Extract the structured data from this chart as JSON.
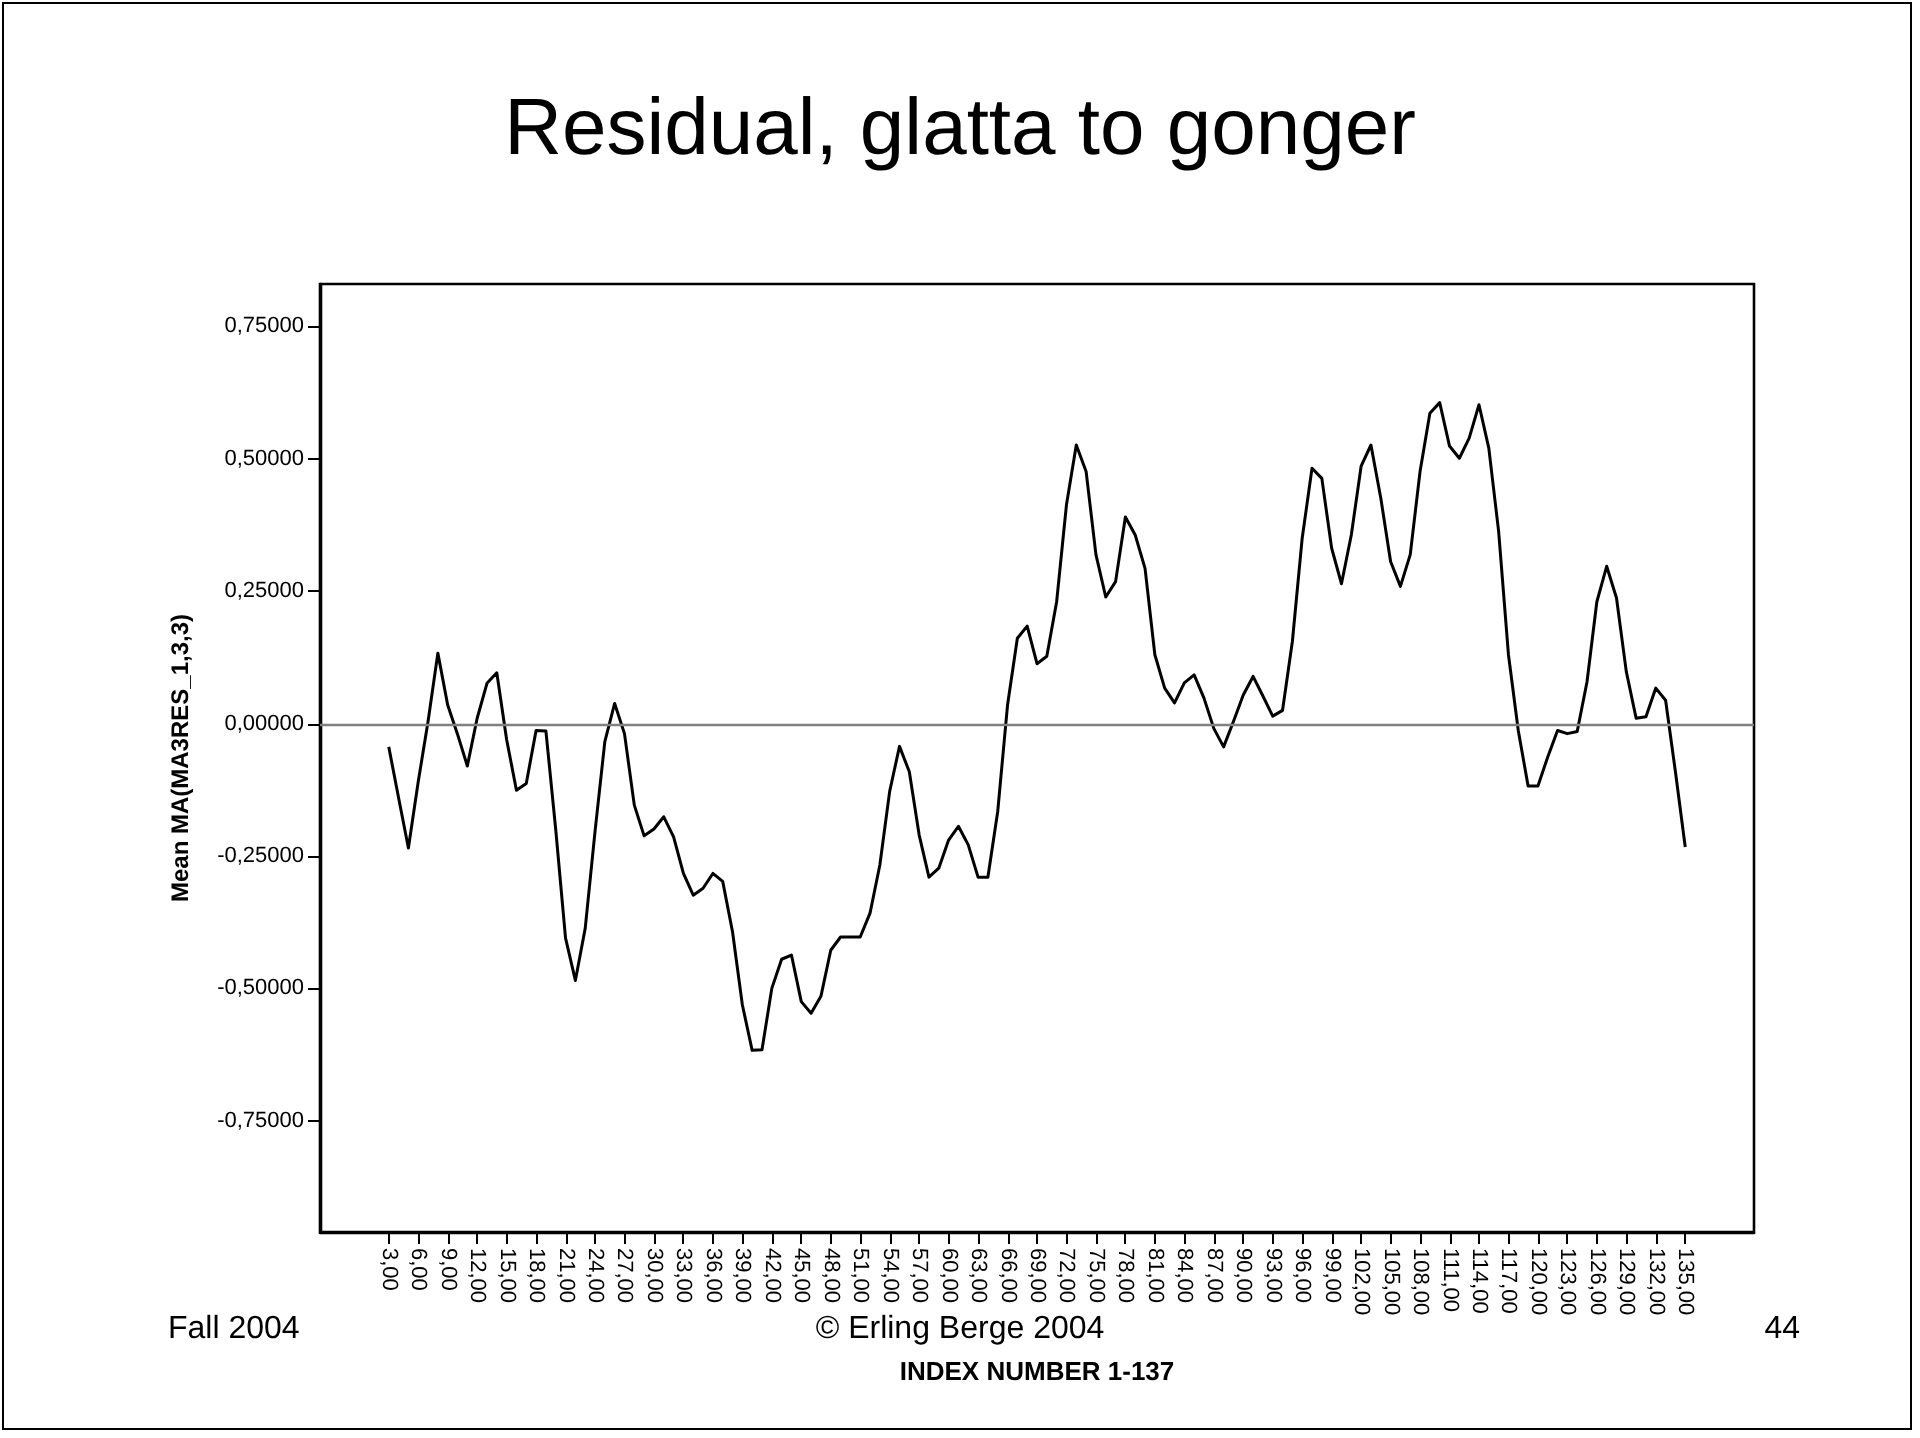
{
  "chart_data": {
    "type": "line",
    "title": "Residual, glatta to gonger",
    "xlabel": "INDEX NUMBER 1-137",
    "ylabel": "Mean MA(MA3RES_1,3,3)",
    "annotations": [
      "Fall 2004",
      "© Erling Berge 2004",
      "44"
    ],
    "x": [
      3,
      4,
      5,
      6,
      7,
      8,
      9,
      10,
      11,
      12,
      13,
      14,
      15,
      16,
      17,
      18,
      19,
      20,
      21,
      22,
      23,
      24,
      25,
      26,
      27,
      28,
      29,
      30,
      31,
      32,
      33,
      34,
      35,
      36,
      37,
      38,
      39,
      40,
      41,
      42,
      43,
      44,
      45,
      46,
      47,
      48,
      49,
      50,
      51,
      52,
      53,
      54,
      55,
      56,
      57,
      58,
      59,
      60,
      61,
      62,
      63,
      64,
      65,
      66,
      67,
      68,
      69,
      70,
      71,
      72,
      73,
      74,
      75,
      76,
      77,
      78,
      79,
      80,
      81,
      82,
      83,
      84,
      85,
      86,
      87,
      88,
      89,
      90,
      91,
      92,
      93,
      94,
      95,
      96,
      97,
      98,
      99,
      100,
      101,
      102,
      103,
      104,
      105,
      106,
      107,
      108,
      109,
      110,
      111,
      112,
      113,
      114,
      115,
      116,
      117,
      118,
      119,
      120,
      121,
      122,
      123,
      124,
      125,
      126,
      127,
      128,
      129,
      130,
      131,
      132,
      133,
      134,
      135
    ],
    "series": [
      {
        "color": "#000000",
        "values": [
          -0.044,
          -0.14,
          -0.235,
          -0.11,
          0.004,
          0.133,
          0.035,
          -0.02,
          -0.08,
          0.01,
          0.076,
          0.096,
          -0.03,
          -0.126,
          -0.113,
          -0.013,
          -0.014,
          -0.2,
          -0.405,
          -0.485,
          -0.387,
          -0.204,
          -0.034,
          0.038,
          -0.019,
          -0.154,
          -0.212,
          -0.199,
          -0.176,
          -0.214,
          -0.283,
          -0.324,
          -0.311,
          -0.283,
          -0.298,
          -0.393,
          -0.531,
          -0.617,
          -0.616,
          -0.5,
          -0.445,
          -0.437,
          -0.525,
          -0.547,
          -0.515,
          -0.428,
          -0.403,
          -0.403,
          -0.403,
          -0.358,
          -0.267,
          -0.128,
          -0.043,
          -0.091,
          -0.21,
          -0.29,
          -0.273,
          -0.22,
          -0.194,
          -0.229,
          -0.29,
          -0.29,
          -0.166,
          0.035,
          0.161,
          0.184,
          0.113,
          0.127,
          0.23,
          0.413,
          0.526,
          0.476,
          0.319,
          0.239,
          0.268,
          0.39,
          0.356,
          0.293,
          0.13,
          0.067,
          0.039,
          0.077,
          0.092,
          0.048,
          -0.009,
          -0.044,
          0.004,
          0.054,
          0.089,
          0.052,
          0.014,
          0.025,
          0.155,
          0.35,
          0.482,
          0.463,
          0.331,
          0.264,
          0.356,
          0.486,
          0.526,
          0.426,
          0.306,
          0.259,
          0.319,
          0.476,
          0.586,
          0.606,
          0.524,
          0.501,
          0.539,
          0.602,
          0.52,
          0.363,
          0.13,
          -0.013,
          -0.118,
          -0.118,
          -0.063,
          -0.013,
          -0.019,
          -0.015,
          0.079,
          0.23,
          0.297,
          0.237,
          0.098,
          0.01,
          0.013,
          0.067,
          0.044,
          -0.091,
          -0.233
        ]
      }
    ],
    "xlim": [
      -4,
      142
    ],
    "xticks": [
      {
        "value": 3,
        "label": "3,00"
      },
      {
        "value": 6,
        "label": "6,00"
      },
      {
        "value": 9,
        "label": "9,00"
      },
      {
        "value": 12,
        "label": "12,00"
      },
      {
        "value": 15,
        "label": "15,00"
      },
      {
        "value": 18,
        "label": "18,00"
      },
      {
        "value": 21,
        "label": "21,00"
      },
      {
        "value": 24,
        "label": "24,00"
      },
      {
        "value": 27,
        "label": "27,00"
      },
      {
        "value": 30,
        "label": "30,00"
      },
      {
        "value": 33,
        "label": "33,00"
      },
      {
        "value": 36,
        "label": "36,00"
      },
      {
        "value": 39,
        "label": "39,00"
      },
      {
        "value": 42,
        "label": "42,00"
      },
      {
        "value": 45,
        "label": "45,00"
      },
      {
        "value": 48,
        "label": "48,00"
      },
      {
        "value": 51,
        "label": "51,00"
      },
      {
        "value": 54,
        "label": "54,00"
      },
      {
        "value": 57,
        "label": "57,00"
      },
      {
        "value": 60,
        "label": "60,00"
      },
      {
        "value": 63,
        "label": "63,00"
      },
      {
        "value": 66,
        "label": "66,00"
      },
      {
        "value": 69,
        "label": "69,00"
      },
      {
        "value": 72,
        "label": "72,00"
      },
      {
        "value": 75,
        "label": "75,00"
      },
      {
        "value": 78,
        "label": "78,00"
      },
      {
        "value": 81,
        "label": "81,00"
      },
      {
        "value": 84,
        "label": "84,00"
      },
      {
        "value": 87,
        "label": "87,00"
      },
      {
        "value": 90,
        "label": "90,00"
      },
      {
        "value": 93,
        "label": "93,00"
      },
      {
        "value": 96,
        "label": "96,00"
      },
      {
        "value": 99,
        "label": "99,00"
      },
      {
        "value": 102,
        "label": "102,00"
      },
      {
        "value": 105,
        "label": "105,00"
      },
      {
        "value": 108,
        "label": "108,00"
      },
      {
        "value": 111,
        "label": "111,00"
      },
      {
        "value": 114,
        "label": "114,00"
      },
      {
        "value": 117,
        "label": "117,00"
      },
      {
        "value": 120,
        "label": "120,00"
      },
      {
        "value": 123,
        "label": "123,00"
      },
      {
        "value": 126,
        "label": "126,00"
      },
      {
        "value": 129,
        "label": "129,00"
      },
      {
        "value": 132,
        "label": "132,00"
      },
      {
        "value": 135,
        "label": "135,00"
      }
    ],
    "ylim": [
      -0.96,
      0.83
    ],
    "yticks": [
      {
        "value": -0.75,
        "label": "-0,75000"
      },
      {
        "value": -0.5,
        "label": "-0,50000"
      },
      {
        "value": -0.25,
        "label": "-0,25000"
      },
      {
        "value": 0,
        "label": "0,00000"
      },
      {
        "value": 0.25,
        "label": "0,25000"
      },
      {
        "value": 0.5,
        "label": "0,50000"
      },
      {
        "value": 0.75,
        "label": "0,75000"
      }
    ],
    "ref_lines": [
      {
        "axis": "y",
        "value": 0,
        "color": "#808080"
      }
    ],
    "grid": false,
    "marker": "none",
    "line_style": "solid"
  }
}
